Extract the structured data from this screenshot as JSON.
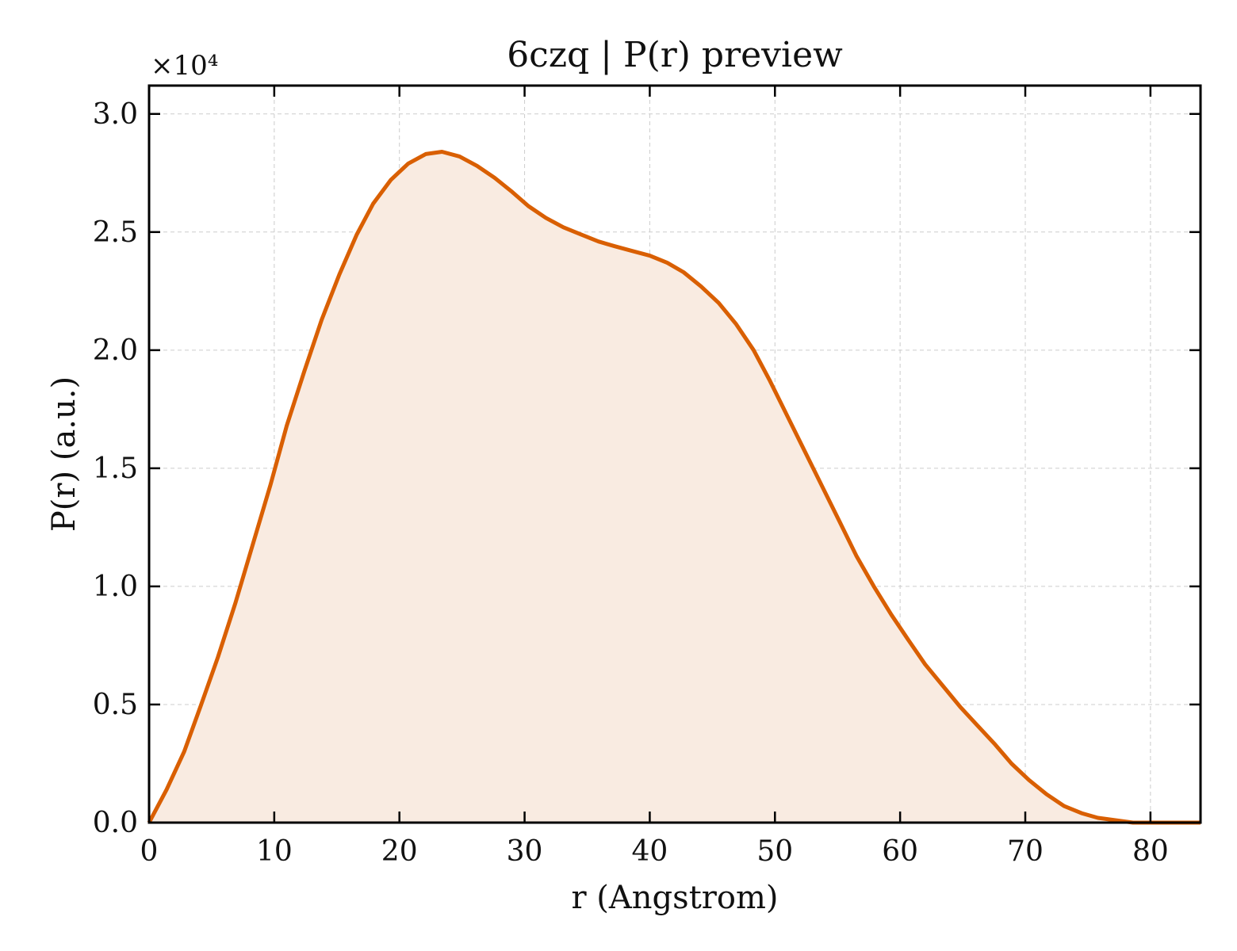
{
  "chart_data": {
    "type": "area",
    "title": "6czq | P(r) preview",
    "xlabel": "r (Angstrom)",
    "ylabel": "P(r) (a.u.)",
    "y_offset_label": "×10⁴",
    "xlim": [
      0,
      84
    ],
    "ylim": [
      0,
      3.12
    ],
    "y_scale_factor": 10000,
    "x_ticks": [
      0,
      10,
      20,
      30,
      40,
      50,
      60,
      70,
      80
    ],
    "y_ticks": [
      0.0,
      0.5,
      1.0,
      1.5,
      2.0,
      2.5,
      3.0
    ],
    "x_tick_labels": [
      "0",
      "10",
      "20",
      "30",
      "40",
      "50",
      "60",
      "70",
      "80"
    ],
    "y_tick_labels": [
      "0.0",
      "0.5",
      "1.0",
      "1.5",
      "2.0",
      "2.5",
      "3.0"
    ],
    "grid": true,
    "line_color": "#d95f02",
    "fill_color": "#f9ebe1",
    "series": [
      {
        "x": [
          0,
          1.4,
          2.8,
          4.1,
          5.5,
          6.9,
          8.3,
          9.7,
          11,
          12.4,
          13.8,
          15.2,
          16.6,
          17.9,
          19.3,
          20.7,
          22.1,
          23.4,
          24.8,
          26.2,
          27.6,
          29,
          30.3,
          31.7,
          33.1,
          34.5,
          35.9,
          37.2,
          38.6,
          40,
          41.4,
          42.7,
          44.1,
          45.5,
          46.9,
          48.3,
          49.6,
          51,
          52.4,
          53.8,
          55.2,
          56.5,
          57.9,
          59.3,
          60.7,
          62,
          63.4,
          64.8,
          66.2,
          67.6,
          68.9,
          70.3,
          71.7,
          73.1,
          74.5,
          75.8,
          77.2,
          78.6,
          80,
          81.4,
          82.7,
          84
        ],
        "y": [
          0.0,
          0.14,
          0.3,
          0.49,
          0.7,
          0.93,
          1.18,
          1.43,
          1.68,
          1.91,
          2.13,
          2.32,
          2.49,
          2.62,
          2.72,
          2.79,
          2.83,
          2.84,
          2.82,
          2.78,
          2.73,
          2.67,
          2.61,
          2.56,
          2.52,
          2.49,
          2.46,
          2.44,
          2.42,
          2.4,
          2.37,
          2.33,
          2.27,
          2.2,
          2.11,
          2.0,
          1.87,
          1.72,
          1.57,
          1.42,
          1.27,
          1.13,
          1.0,
          0.88,
          0.77,
          0.67,
          0.58,
          0.49,
          0.41,
          0.33,
          0.25,
          0.18,
          0.12,
          0.07,
          0.04,
          0.02,
          0.01,
          0.0,
          0.0,
          0.0,
          0.0,
          0.0
        ]
      }
    ]
  }
}
